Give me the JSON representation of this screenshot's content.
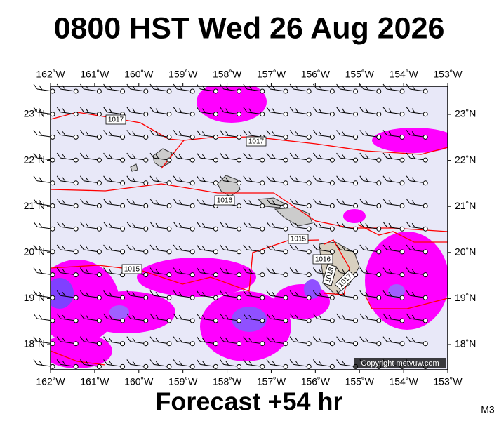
{
  "header": {
    "title": "0800 HST Wed 26 Aug 2026"
  },
  "map": {
    "lon_labels": [
      "162˚W",
      "161˚W",
      "160˚W",
      "159˚W",
      "158˚W",
      "157˚W",
      "156˚W",
      "155˚W",
      "154˚W",
      "153˚W"
    ],
    "lat_labels": [
      "23˚N",
      "22˚N",
      "21˚N",
      "20˚N",
      "19˚N",
      "18˚N"
    ],
    "isobar_labels": [
      "1017",
      "1017",
      "1016",
      "1015",
      "1015",
      "1016",
      "1018",
      "1017"
    ],
    "copyright": "Copyright metvuw.com"
  },
  "footer": {
    "forecast": "Forecast +54 hr",
    "model": "M3"
  }
}
